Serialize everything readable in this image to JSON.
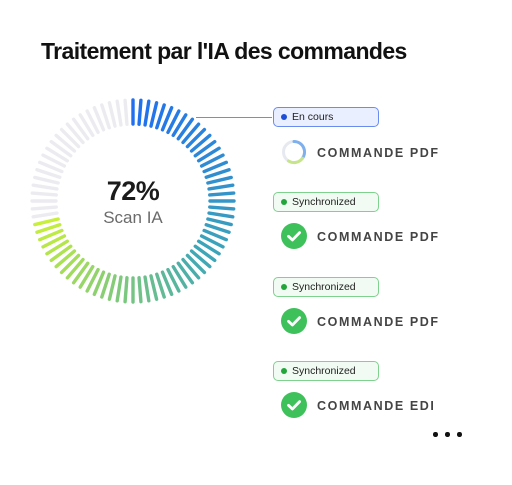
{
  "title": "Traitement par l'IA des commandes",
  "gauge": {
    "percent": "72%",
    "value": 0.72,
    "label": "Scan IA"
  },
  "items": [
    {
      "status": "En cours",
      "state": "running",
      "label": "COMMANDE PDF"
    },
    {
      "status": "Synchronized",
      "state": "done",
      "label": "COMMANDE PDF"
    },
    {
      "status": "Synchronized",
      "state": "done",
      "label": "COMMANDE PDF"
    },
    {
      "status": "Synchronized",
      "state": "done",
      "label": "COMMANDE EDI"
    }
  ],
  "colors": {
    "running": "#1d4ed8",
    "done": "#22a63a",
    "gauge_start": "#1f6ff0",
    "gauge_mid": "#3ea7b6",
    "gauge_end": "#c7ef3c",
    "gauge_track": "#ececf0"
  },
  "icons": {
    "running": "progress-ring-icon",
    "done": "check-circle-icon",
    "more": "more-dots-icon"
  }
}
